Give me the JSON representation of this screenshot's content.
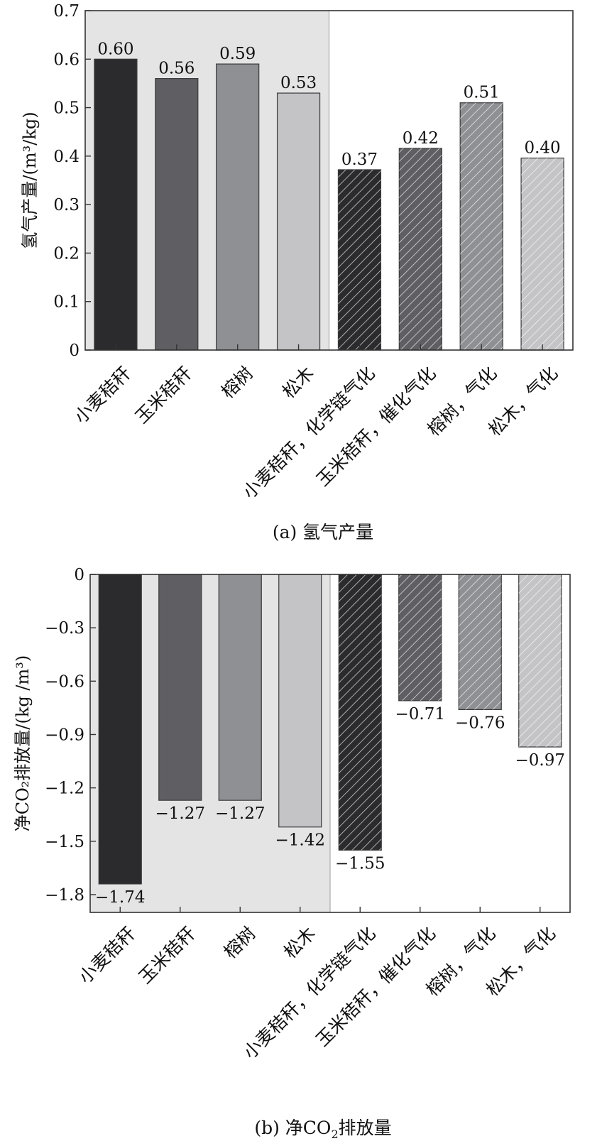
{
  "chart_data": [
    {
      "type": "bar",
      "caption": "(a) 氢气产量",
      "ylabel": "氢气产量/(m³/kg)",
      "ylim": [
        0,
        0.7
      ],
      "yticks": [
        "0",
        "0.1",
        "0.2",
        "0.3",
        "0.4",
        "0.5",
        "0.6",
        "0.7"
      ],
      "categories": [
        "小麦秸秆",
        "玉米秸秆",
        "榕树",
        "松木",
        "小麦秸秆，化学链气化",
        "玉米秸秆，催化气化",
        "榕树，气化",
        "松木，气化"
      ],
      "values": [
        0.6,
        0.56,
        0.59,
        0.53,
        0.372,
        0.416,
        0.51,
        0.396
      ],
      "value_labels": [
        "0.60",
        "0.56",
        "0.59",
        "0.53",
        "0.37",
        "0.42",
        "0.51",
        "0.40"
      ],
      "shaded_region_categories": 4,
      "grid": false
    },
    {
      "type": "bar",
      "caption_prefix": "(b) 净CO",
      "caption_sub": "2",
      "caption_suffix": "排放量",
      "ylabel": "净CO₂排放量/(kg /m³)",
      "ylim": [
        -1.9,
        0
      ],
      "yticks": [
        "0",
        "−0.3",
        "−0.6",
        "−0.9",
        "−1.2",
        "−1.5",
        "−1.8"
      ],
      "categories": [
        "小麦秸秆",
        "玉米秸秆",
        "榕树",
        "松木",
        "小麦秸秆，化学链气化",
        "玉米秸秆，催化气化",
        "榕树，气化",
        "松木，气化"
      ],
      "values": [
        -1.74,
        -1.27,
        -1.27,
        -1.42,
        -1.55,
        -0.71,
        -0.76,
        -0.97
      ],
      "value_labels": [
        "−1.74",
        "−1.27",
        "−1.27",
        "−1.42",
        "−1.55",
        "−0.71",
        "−0.76",
        "−0.97"
      ],
      "shaded_region_categories": 4,
      "grid": false
    }
  ],
  "colors": {
    "bar_fills": [
      "#2b2b2d",
      "#5f5f63",
      "#8e9093",
      "#c4c4c6",
      "#2b2b2d",
      "#5f5f63",
      "#8e9093",
      "#c4c4c6"
    ],
    "hatch_bars": [
      false,
      false,
      false,
      false,
      true,
      true,
      true,
      true
    ],
    "shaded_region": "#e4e4e5",
    "axis": "#333333"
  }
}
